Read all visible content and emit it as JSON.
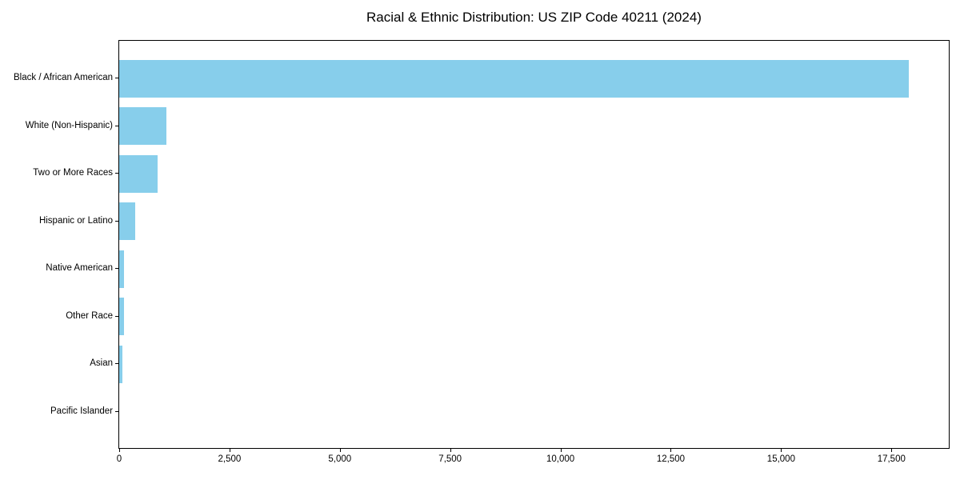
{
  "chart_data": {
    "type": "bar",
    "orientation": "horizontal",
    "title": "Racial & Ethnic Distribution: US ZIP Code 40211 (2024)",
    "xlabel": "",
    "ylabel": "",
    "categories": [
      "Black / African American",
      "White (Non-Hispanic)",
      "Two or More Races",
      "Hispanic or Latino",
      "Native American",
      "Other Race",
      "Asian",
      "Pacific Islander"
    ],
    "values": [
      17885,
      1062,
      878,
      356,
      104,
      115,
      72,
      0
    ],
    "xlim": [
      0,
      18800
    ],
    "xticks": [
      0,
      2500,
      5000,
      7500,
      10000,
      12500,
      15000,
      17500
    ],
    "xtick_labels": [
      "0",
      "2,500",
      "5,000",
      "7,500",
      "10,000",
      "12,500",
      "15,000",
      "17,500"
    ],
    "grid": false,
    "legend": "none",
    "bar_color": "#87CEEB",
    "background_color": "#ffffff",
    "text_color": "#000000",
    "spine_color": "#000000"
  }
}
